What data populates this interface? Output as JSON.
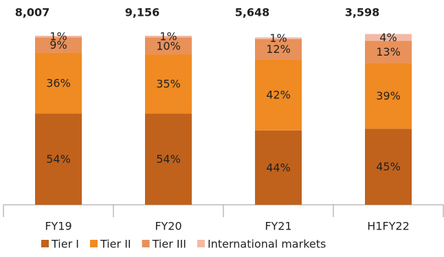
{
  "chart_data": {
    "type": "stacked_bar",
    "categories": [
      "FY19",
      "FY20",
      "FY21",
      "H1FY22"
    ],
    "totals": {
      "values": [
        8007,
        9156,
        5648,
        3598
      ],
      "value_labels": [
        "8,007",
        "9,156",
        "5,648",
        "3,598"
      ]
    },
    "series": [
      {
        "name": "Tier I",
        "color": "#c0621c",
        "values": [
          54,
          54,
          44,
          45
        ],
        "value_labels": [
          "54%",
          "54%",
          "44%",
          "45%"
        ]
      },
      {
        "name": "Tier II",
        "color": "#f08a22",
        "values": [
          36,
          35,
          42,
          39
        ],
        "value_labels": [
          "36%",
          "35%",
          "42%",
          "39%"
        ]
      },
      {
        "name": "Tier III",
        "color": "#e8915a",
        "values": [
          9,
          10,
          12,
          13
        ],
        "value_labels": [
          "9%",
          "10%",
          "12%",
          "13%"
        ]
      },
      {
        "name": "International markets",
        "color": "#f3b9a4",
        "values": [
          1,
          1,
          1,
          4
        ],
        "value_labels": [
          "1%",
          "1%",
          "1%",
          "4%"
        ]
      }
    ],
    "ylim": [
      0,
      100
    ]
  }
}
